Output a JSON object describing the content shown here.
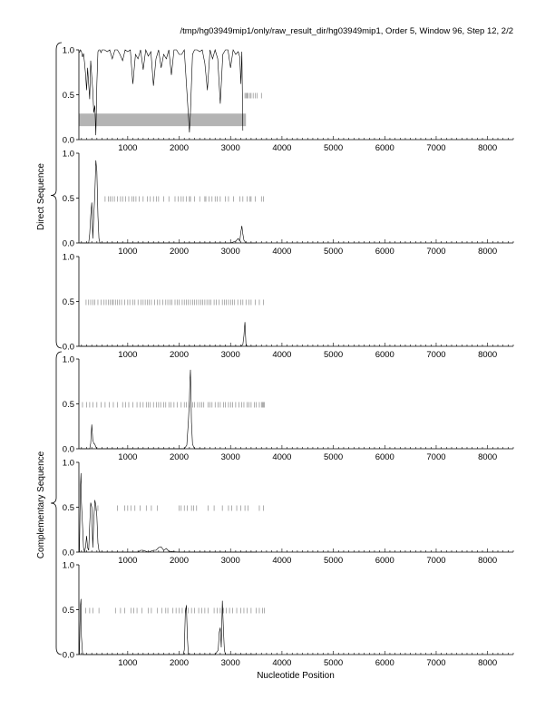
{
  "header": {
    "title": "/tmp/hg03949mip1/only/raw_result_dir/hg03949mip1, Order 5, Window 96, Step 12, 2/2"
  },
  "axes": {
    "xlabel": "Nucleotide Position",
    "group_labels": [
      "Direct Sequence",
      "Complementary Sequence"
    ],
    "x_ticks": [
      1000,
      2000,
      3000,
      4000,
      5000,
      6000,
      7000,
      8000
    ],
    "y_ticks": [
      "0.0",
      "0.5",
      "1.0"
    ]
  },
  "chart_data": [
    {
      "type": "line",
      "panel": 1,
      "strand": "direct",
      "xlim": [
        50,
        8500
      ],
      "ylim": [
        0,
        1
      ],
      "x": [
        60,
        80,
        100,
        120,
        140,
        160,
        180,
        200,
        220,
        240,
        260,
        280,
        300,
        320,
        340,
        360,
        380,
        400,
        420,
        440,
        460,
        480,
        500,
        550,
        600,
        650,
        700,
        750,
        800,
        850,
        900,
        950,
        1000,
        1050,
        1100,
        1150,
        1200,
        1250,
        1300,
        1350,
        1400,
        1450,
        1500,
        1550,
        1600,
        1650,
        1700,
        1750,
        1800,
        1850,
        1900,
        1950,
        2000,
        2050,
        2100,
        2150,
        2200,
        2220,
        2240,
        2260,
        2300,
        2350,
        2400,
        2450,
        2500,
        2550,
        2600,
        2650,
        2700,
        2750,
        2800,
        2850,
        2900,
        2950,
        3000,
        3050,
        3100,
        3150,
        3180,
        3200,
        3220,
        3240
      ],
      "y": [
        0.97,
        1.0,
        0.98,
        0.92,
        0.96,
        0.86,
        0.72,
        0.55,
        0.8,
        0.62,
        0.45,
        0.88,
        0.7,
        0.55,
        0.3,
        0.38,
        0.05,
        0.62,
        0.98,
        1.0,
        1.0,
        0.97,
        1.0,
        1.0,
        0.98,
        1.0,
        0.9,
        1.0,
        1.0,
        0.95,
        0.88,
        1.0,
        0.98,
        1.0,
        0.62,
        0.95,
        0.9,
        1.0,
        0.78,
        1.0,
        0.93,
        0.98,
        0.6,
        0.9,
        1.0,
        0.8,
        0.95,
        0.9,
        1.0,
        0.72,
        1.0,
        1.0,
        0.95,
        0.95,
        1.0,
        0.55,
        0.08,
        0.3,
        0.62,
        0.95,
        1.0,
        1.0,
        0.98,
        1.0,
        0.85,
        0.55,
        1.0,
        0.9,
        1.0,
        0.9,
        0.4,
        0.95,
        1.0,
        1.0,
        0.8,
        1.0,
        0.95,
        0.98,
        0.92,
        0.62,
        0.98,
        0.1
      ],
      "ticks": [
        3280,
        3300,
        3320,
        3340,
        3380,
        3400,
        3440,
        3480,
        3520,
        3600
      ],
      "tick_level": 0.49,
      "shaded_band": {
        "x": [
          50,
          3300
        ],
        "y": [
          0.15,
          0.29
        ]
      }
    },
    {
      "type": "line",
      "panel": 2,
      "strand": "direct",
      "xlim": [
        50,
        8500
      ],
      "ylim": [
        0,
        1
      ],
      "x": [
        60,
        100,
        150,
        200,
        240,
        260,
        280,
        300,
        320,
        340,
        360,
        380,
        400,
        420,
        440,
        460,
        500,
        600,
        1000,
        2000,
        3000,
        3100,
        3150,
        3180,
        3200,
        3220,
        3240,
        3260,
        3300,
        3500
      ],
      "y": [
        0,
        0,
        0,
        0,
        0,
        0.1,
        0.3,
        0.45,
        0.05,
        0.3,
        0.55,
        0.92,
        0.8,
        0.3,
        0.05,
        0,
        0,
        0,
        0,
        0,
        0,
        0.02,
        0.05,
        0.02,
        0.12,
        0.19,
        0.1,
        0.03,
        0,
        0
      ],
      "ticks": [
        560,
        620,
        660,
        700,
        740,
        800,
        860,
        900,
        960,
        1020,
        1080,
        1120,
        1160,
        1220,
        1300,
        1380,
        1440,
        1500,
        1560,
        1600,
        1700,
        1800,
        1920,
        1980,
        2040,
        2080,
        2140,
        2200,
        2220,
        2300,
        2400,
        2500,
        2520,
        2580,
        2640,
        2700,
        2740,
        2800,
        2900,
        2960,
        3060,
        3180,
        3240,
        3320,
        3380,
        3400,
        3480,
        3600,
        3640
      ],
      "tick_level": 0.49
    },
    {
      "type": "line",
      "panel": 3,
      "strand": "direct",
      "xlim": [
        50,
        8500
      ],
      "ylim": [
        0,
        1
      ],
      "x": [
        60,
        1000,
        2000,
        3000,
        3200,
        3240,
        3260,
        3270,
        3280,
        3290,
        3300,
        3320,
        3500
      ],
      "y": [
        0,
        0,
        0,
        0,
        0,
        0.02,
        0.12,
        0.2,
        0.27,
        0.14,
        0.03,
        0,
        0
      ],
      "ticks": [
        190,
        240,
        280,
        320,
        360,
        420,
        480,
        540,
        580,
        620,
        660,
        700,
        720,
        760,
        800,
        840,
        880,
        940,
        1000,
        1040,
        1100,
        1140,
        1200,
        1260,
        1300,
        1340,
        1380,
        1420,
        1460,
        1520,
        1580,
        1620,
        1680,
        1740,
        1780,
        1820,
        1860,
        1920,
        1960,
        2000,
        2060,
        2100,
        2140,
        2180,
        2220,
        2260,
        2300,
        2340,
        2380,
        2420,
        2460,
        2500,
        2540,
        2580,
        2620,
        2680,
        2720,
        2780,
        2840,
        2880,
        2920,
        2960,
        3000,
        3040,
        3080,
        3140,
        3200,
        3240,
        3300,
        3360,
        3400,
        3480,
        3560,
        3640
      ],
      "tick_level": 0.49
    },
    {
      "type": "line",
      "panel": 4,
      "strand": "complementary",
      "xlim": [
        50,
        8500
      ],
      "ylim": [
        0,
        1
      ],
      "x": [
        60,
        200,
        260,
        280,
        300,
        320,
        340,
        360,
        380,
        400,
        500,
        1000,
        2000,
        2100,
        2150,
        2180,
        2200,
        2210,
        2220,
        2230,
        2240,
        2260,
        2300,
        2500
      ],
      "y": [
        0,
        0,
        0,
        0.06,
        0.27,
        0.1,
        0.06,
        0.05,
        0.02,
        0,
        0,
        0,
        0,
        0,
        0.04,
        0.3,
        0.55,
        0.75,
        0.88,
        0.6,
        0.3,
        0.05,
        0,
        0
      ],
      "ticks": [
        120,
        200,
        260,
        320,
        400,
        480,
        560,
        640,
        720,
        800,
        900,
        960,
        1020,
        1100,
        1180,
        1240,
        1300,
        1360,
        1400,
        1440,
        1500,
        1560,
        1600,
        1640,
        1700,
        1740,
        1800,
        1840,
        1900,
        1960,
        2040,
        2100,
        2140,
        2200,
        2260,
        2300,
        2360,
        2400,
        2440,
        2480,
        2560,
        2600,
        2640,
        2700,
        2760,
        2800,
        2860,
        2900,
        2960,
        3000,
        3040,
        3100,
        3160,
        3220,
        3260,
        3320,
        3360,
        3400,
        3460,
        3500,
        3560,
        3600,
        3620,
        3640,
        3660
      ],
      "tick_level": 0.49
    },
    {
      "type": "line",
      "panel": 5,
      "strand": "complementary",
      "xlim": [
        50,
        8500
      ],
      "ylim": [
        0,
        1
      ],
      "x": [
        60,
        80,
        90,
        100,
        120,
        140,
        160,
        180,
        200,
        220,
        240,
        260,
        280,
        300,
        320,
        340,
        360,
        380,
        400,
        420,
        440,
        460,
        480,
        500,
        600,
        800,
        1000,
        1200,
        1250,
        1300,
        1400,
        1500,
        1550,
        1600,
        1650,
        1700,
        1750,
        1800,
        2000,
        2200,
        2600,
        3000,
        3500
      ],
      "y": [
        0,
        0.75,
        0.88,
        0.55,
        0.3,
        0.05,
        0,
        0.06,
        0.18,
        0.05,
        0.02,
        0.3,
        0.55,
        0.5,
        0.05,
        0.35,
        0.58,
        0.52,
        0.4,
        0.1,
        0.02,
        0,
        0,
        0,
        0,
        0,
        0,
        0,
        0.02,
        0.02,
        0,
        0.02,
        0.02,
        0.05,
        0.06,
        0.02,
        0.04,
        0.01,
        0,
        0,
        0,
        0,
        0
      ],
      "ticks": [
        380,
        420,
        800,
        940,
        1000,
        1060,
        1140,
        1240,
        1360,
        1460,
        1580,
        2000,
        2040,
        2100,
        2160,
        2240,
        2280,
        2340,
        2560,
        2680,
        2840,
        2960,
        3020,
        3120,
        3200,
        3280,
        3340,
        3560,
        3640
      ],
      "tick_level": 0.49
    },
    {
      "type": "line",
      "panel": 6,
      "strand": "complementary",
      "xlim": [
        50,
        8500
      ],
      "ylim": [
        0,
        1
      ],
      "x": [
        60,
        70,
        80,
        90,
        100,
        120,
        140,
        500,
        1000,
        2000,
        2080,
        2100,
        2120,
        2140,
        2160,
        2180,
        2500,
        2700,
        2760,
        2780,
        2800,
        2820,
        2840,
        2860,
        2880,
        2900,
        3000,
        3500
      ],
      "y": [
        0,
        0.3,
        0.55,
        0.62,
        0.2,
        0.02,
        0,
        0,
        0,
        0,
        0,
        0.05,
        0.45,
        0.55,
        0.2,
        0,
        0,
        0,
        0.05,
        0.25,
        0.3,
        0.08,
        0.6,
        0.3,
        0.05,
        0,
        0,
        0
      ],
      "ticks": [
        180,
        260,
        320,
        440,
        760,
        860,
        940,
        1060,
        1120,
        1180,
        1280,
        1400,
        1460,
        1580,
        1660,
        1740,
        1780,
        1880,
        1940,
        2000,
        2060,
        2120,
        2180,
        2240,
        2300,
        2380,
        2440,
        2500,
        2560,
        2680,
        2740,
        2800,
        2860,
        2920,
        2980,
        3040,
        3120,
        3200,
        3260,
        3320,
        3400,
        3500,
        3560,
        3620,
        3660
      ],
      "tick_level": 0.49
    }
  ]
}
